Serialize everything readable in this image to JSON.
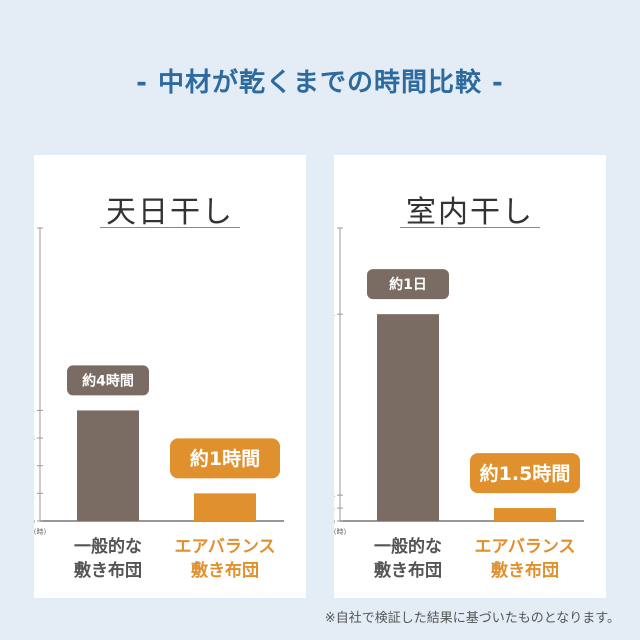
{
  "page_title": "- 中材が乾くまでの時間比較 -",
  "footnote": "※自社で検証した結果に基づいたものとなります。",
  "colors": {
    "general": "#7a6b63",
    "airbalance": "#e0902c",
    "title": "#2d6a9f"
  },
  "chart_data": [
    {
      "type": "bar",
      "title": "天日干し",
      "yunit": "(時)",
      "yticks": [
        0,
        1,
        2,
        3,
        4
      ],
      "ylim": [
        0,
        10.6
      ],
      "categories": [
        "一般的な\n敷き布団",
        "エアバランス\n敷き布団"
      ],
      "values": [
        4,
        1
      ],
      "data_labels": [
        "約4時間",
        "約1時間"
      ]
    },
    {
      "type": "bar",
      "title": "室内干し",
      "yunit": "(時)",
      "yticks": [
        0,
        1.5,
        3,
        24
      ],
      "ylim": [
        0,
        34
      ],
      "categories": [
        "一般的な\n敷き布団",
        "エアバランス\n敷き布団"
      ],
      "values": [
        24,
        1.5
      ],
      "data_labels": [
        "約1日",
        "約1.5時間"
      ]
    }
  ]
}
